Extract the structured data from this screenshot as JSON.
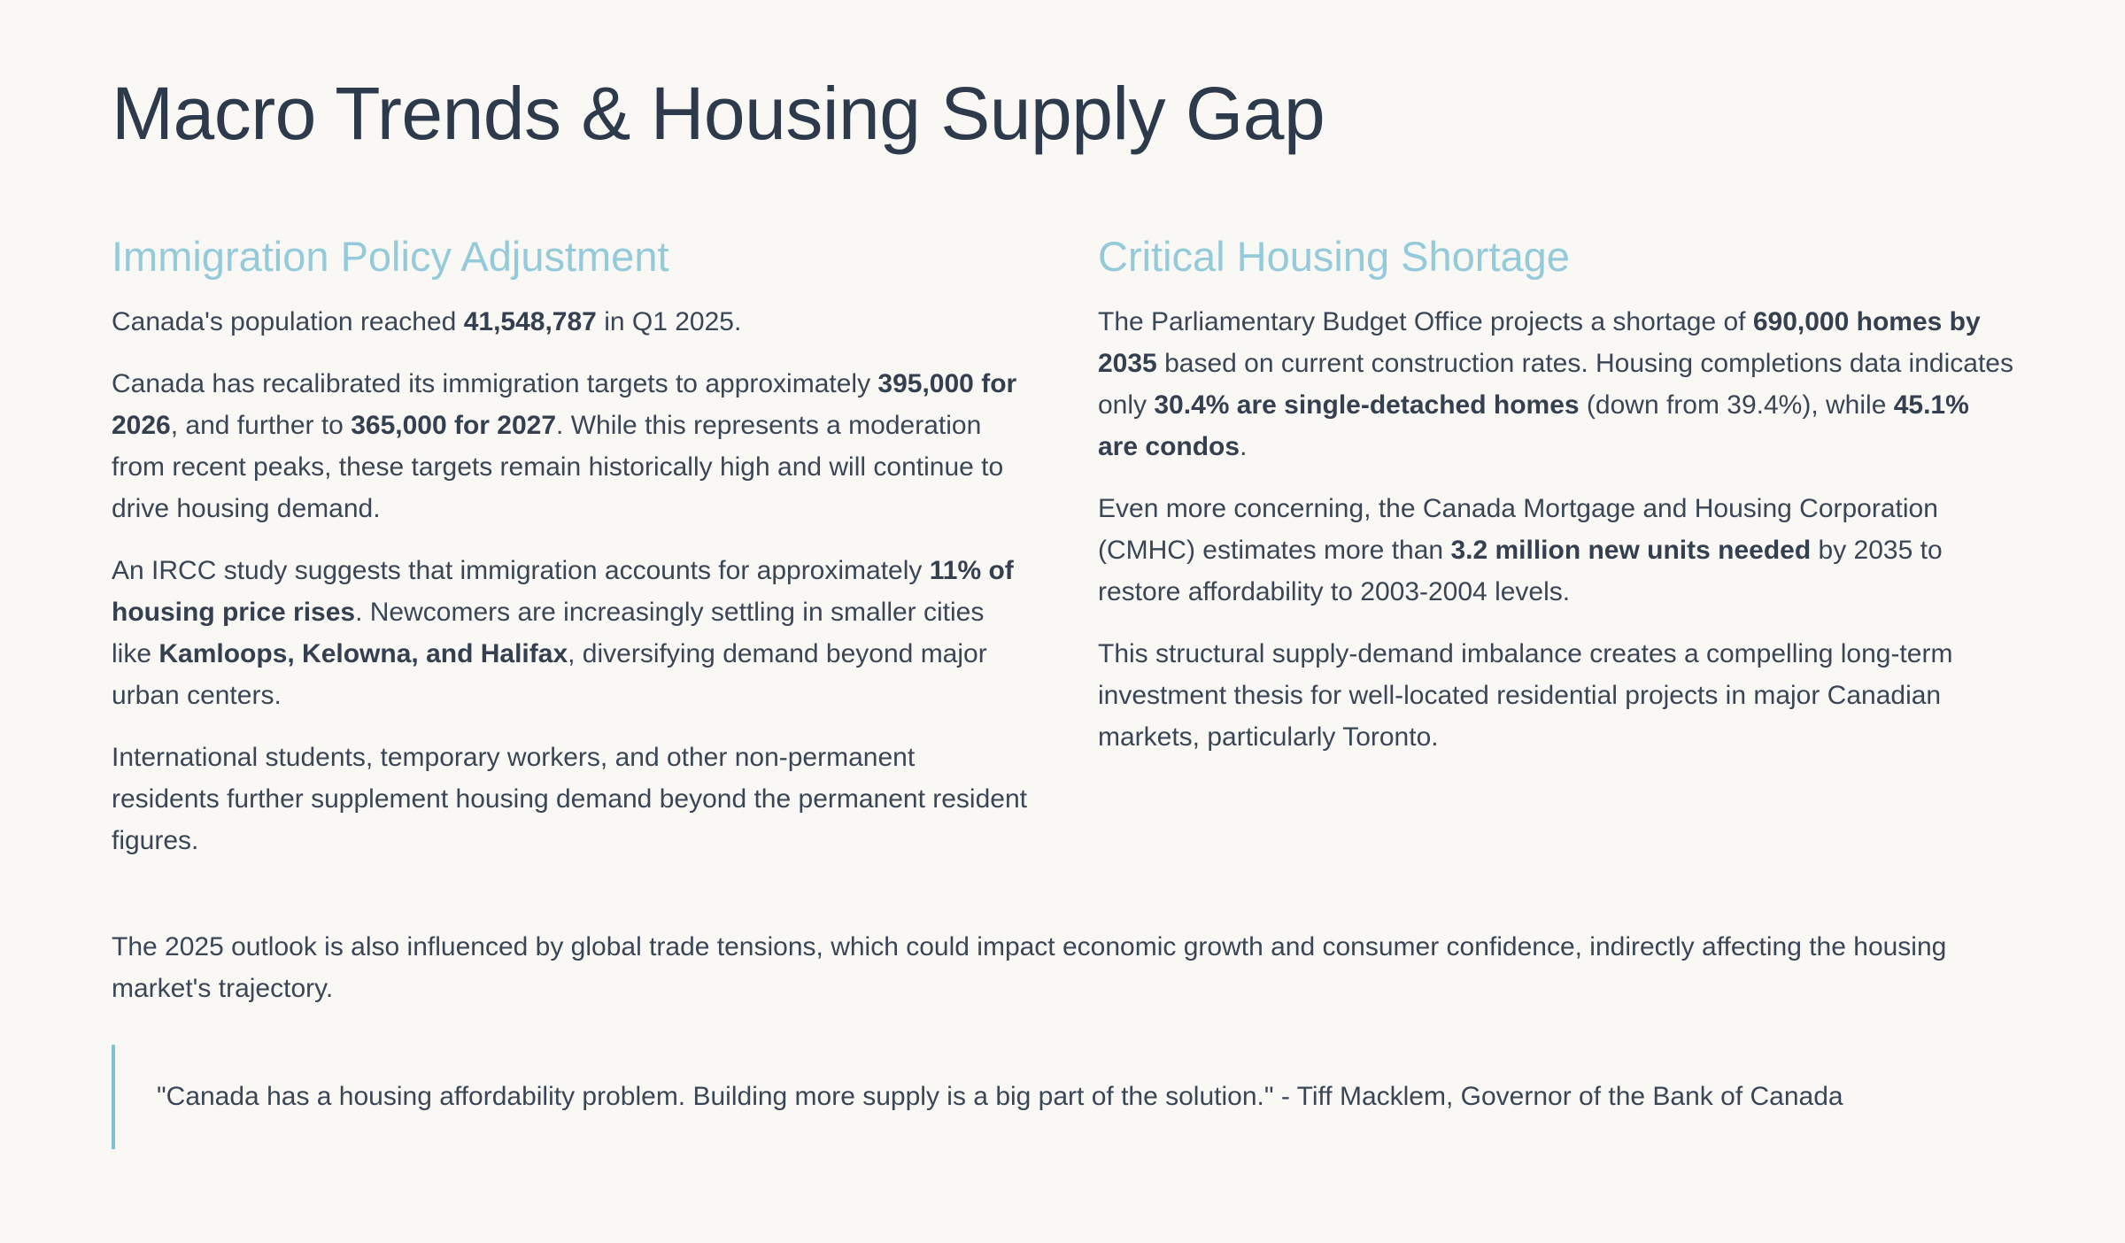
{
  "title": "Macro Trends & Housing Supply Gap",
  "left": {
    "heading": "Immigration Policy Adjustment",
    "p1": {
      "a": "Canada's population reached ",
      "b": "41,548,787",
      "c": " in Q1 2025."
    },
    "p2": {
      "a": "Canada has recalibrated its immigration targets to approximately ",
      "b": "395,000 for 2026",
      "c": ", and further to ",
      "d": "365,000 for 2027",
      "e": ". While this represents a moderation from recent peaks, these targets remain historically high and will continue to drive housing demand."
    },
    "p3": {
      "a": "An IRCC study suggests that immigration accounts for approximately ",
      "b": "11% of housing price rises",
      "c": ". Newcomers are increasingly settling in smaller cities like ",
      "d": "Kamloops, Kelowna, and Halifax",
      "e": ", diversifying demand beyond major urban centers."
    },
    "p4": "International students, temporary workers, and other non-permanent residents further supplement housing demand beyond the permanent resident figures."
  },
  "right": {
    "heading": "Critical Housing Shortage",
    "p1": {
      "a": "The Parliamentary Budget Office projects a shortage of ",
      "b": "690,000 homes by 2035",
      "c": " based on current construction rates. Housing completions data indicates only ",
      "d": "30.4% are single-detached homes",
      "e": " (down from 39.4%), while ",
      "f": "45.1% are condos",
      "g": "."
    },
    "p2": {
      "a": "Even more concerning, the Canada Mortgage and Housing Corporation (CMHC) estimates more than ",
      "b": "3.2 million new units needed",
      "c": " by 2035 to restore affordability to 2003-2004 levels."
    },
    "p3": "This structural supply-demand imbalance creates a compelling long-term investment thesis for well-located residential projects in major Canadian markets, particularly Toronto."
  },
  "outlook": "The 2025 outlook is also influenced by global trade tensions, which could impact economic growth and consumer confidence, indirectly affecting the housing market's trajectory.",
  "quote": "\"Canada has a housing affordability problem. Building more supply is a big part of the solution.\" - Tiff Macklem, Governor of the Bank of Canada",
  "colors": {
    "title": "#2c3a4c",
    "heading": "#94cad9",
    "accent_border": "#7ec3d6",
    "background": "#faf8f5"
  }
}
